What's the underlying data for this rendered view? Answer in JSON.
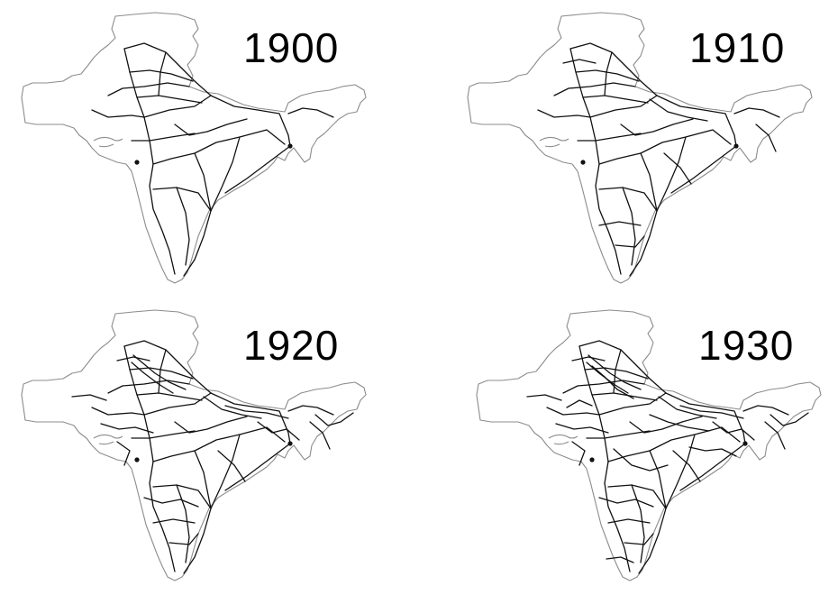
{
  "colors": {
    "background": "#ffffff",
    "outline": "#8c8c8c",
    "railway": "#111111",
    "label": "#000000"
  },
  "panels": [
    {
      "year": "1900",
      "density": 0
    },
    {
      "year": "1910",
      "density": 1
    },
    {
      "year": "1920",
      "density": 2
    },
    {
      "year": "1930",
      "density": 3
    }
  ]
}
